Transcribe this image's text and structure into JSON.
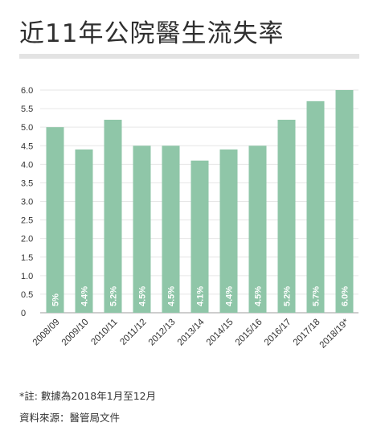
{
  "title": "近11年公院醫生流失率",
  "footnote": "*註: 數據為2018年1月至12月",
  "source": "資料來源：醫管局文件",
  "colors": {
    "bar": "#8fc6a8",
    "grid": "#e6e6e6",
    "axis": "#bdbdbd"
  },
  "chart_data": {
    "type": "bar",
    "categories": [
      "2008/09",
      "2009/10",
      "2010/11",
      "2011/12",
      "2012/13",
      "2013/14",
      "2014/15",
      "2015/16",
      "2016/17",
      "2017/18",
      "2018/19*"
    ],
    "values": [
      5.0,
      4.4,
      5.2,
      4.5,
      4.5,
      4.1,
      4.4,
      4.5,
      5.2,
      5.7,
      6.0
    ],
    "data_labels": [
      "5%",
      "4.4%",
      "5.2%",
      "4.5%",
      "4.5%",
      "4.1%",
      "4.4%",
      "4.5%",
      "5.2%",
      "5.7%",
      "6.0%"
    ],
    "yticks": [
      "0",
      "0.5",
      "1.0",
      "1.5",
      "2.0",
      "2.5",
      "3.0",
      "3.5",
      "4.0",
      "4.5",
      "5.0",
      "5.5",
      "6.0"
    ],
    "ylim": [
      0,
      6.0
    ],
    "grid": true,
    "title": "近11年公院醫生流失率",
    "xlabel": "",
    "ylabel": ""
  }
}
